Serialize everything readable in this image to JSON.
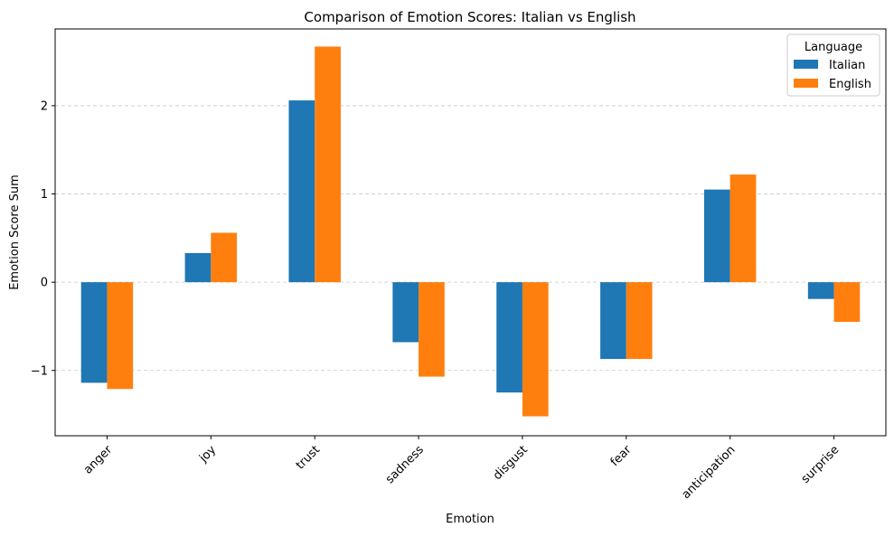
{
  "chart_data": {
    "type": "bar",
    "title": "Comparison of Emotion Scores: Italian vs English",
    "xlabel": "Emotion",
    "ylabel": "Emotion Score Sum",
    "categories": [
      "anger",
      "joy",
      "trust",
      "sadness",
      "disgust",
      "fear",
      "anticipation",
      "surprise"
    ],
    "series": [
      {
        "name": "Italian",
        "color": "#1f77b4",
        "values": [
          -1.14,
          0.33,
          2.06,
          -0.68,
          -1.25,
          -0.87,
          1.05,
          -0.19
        ]
      },
      {
        "name": "English",
        "color": "#ff7f0e",
        "values": [
          -1.21,
          0.56,
          2.67,
          -1.07,
          -1.52,
          -0.87,
          1.22,
          -0.45
        ]
      }
    ],
    "ylim": [
      -1.74,
      2.87
    ],
    "yticks": [
      -1,
      0,
      1,
      2
    ],
    "ytick_labels": [
      "−1",
      "0",
      "1",
      "2"
    ],
    "grid": "horizontal dashed",
    "legend": {
      "title": "Language",
      "placement": "top-right"
    }
  }
}
